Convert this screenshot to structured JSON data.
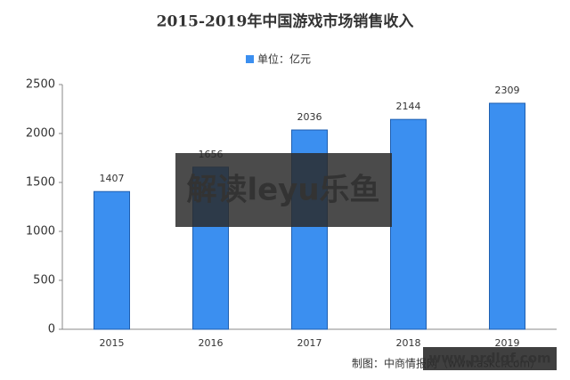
{
  "chart_data": {
    "type": "bar",
    "title": "2015-2019年中国游戏市场销售收入",
    "series": [
      {
        "name": "单位：亿元",
        "color": "#3b8ff0",
        "values": [
          1407,
          1656,
          2036,
          2144,
          2309
        ]
      }
    ],
    "categories": [
      "2015",
      "2016",
      "2017",
      "2018",
      "2019"
    ],
    "ylim": [
      0,
      2500
    ],
    "yticks": [
      0,
      500,
      1000,
      1500,
      2000,
      2500
    ],
    "grid": false,
    "source": "制图：中商情报网（www.askci.com）"
  },
  "overlays": {
    "banner": "解读leyu乐鱼",
    "site": "www.prdlgf.com"
  }
}
